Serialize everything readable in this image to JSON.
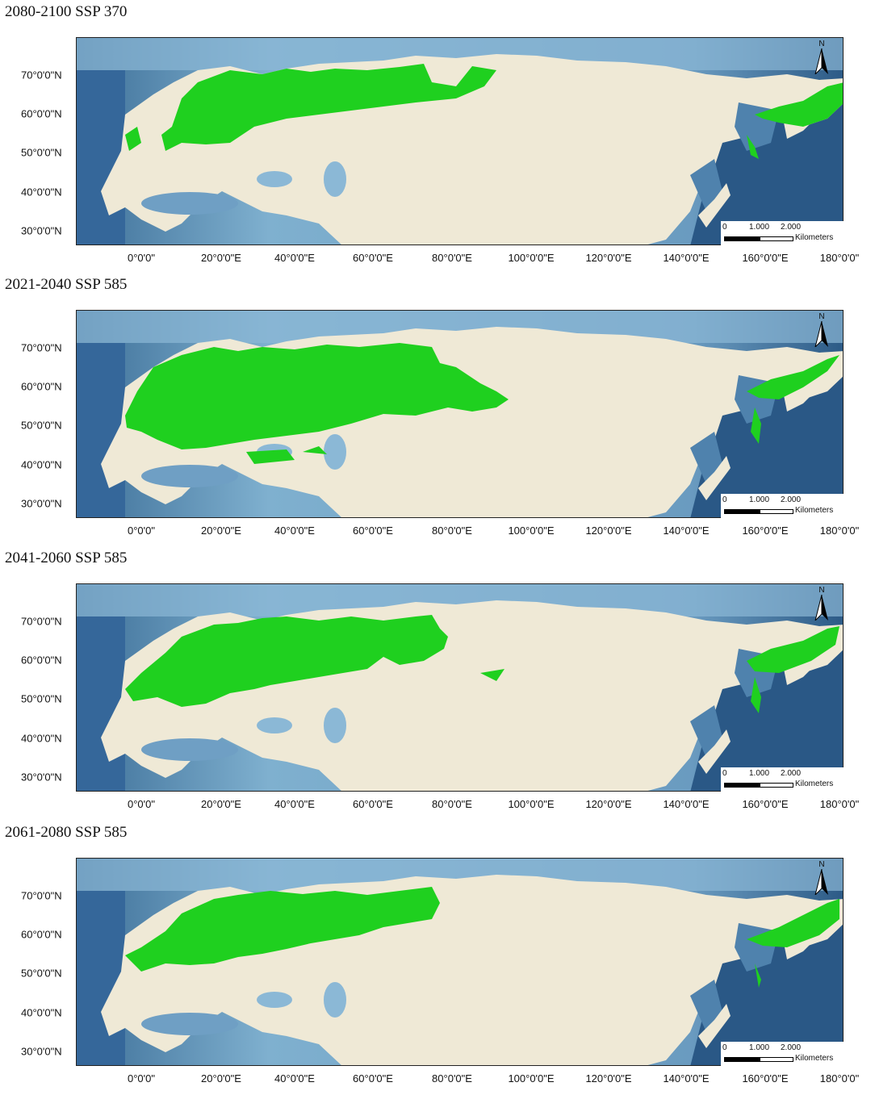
{
  "panels": [
    {
      "title": "2080-2100 SSP 370"
    },
    {
      "title": "2021-2040 SSP 585"
    },
    {
      "title": "2041-2060 SSP 585"
    },
    {
      "title": "2061-2080 SSP 585"
    }
  ],
  "lat_labels": [
    "70°0'0\"N",
    "60°0'0\"N",
    "50°0'0\"N",
    "40°0'0\"N",
    "30°0'0\"N"
  ],
  "lon_labels": [
    "0°0'0\"",
    "20°0'0\"E",
    "40°0'0\"E",
    "60°0'0\"E",
    "80°0'0\"E",
    "100°0'0\"E",
    "120°0'0\"E",
    "140°0'0\"E",
    "160°0'0\"E",
    "180°0'0\""
  ],
  "north_arrow": {
    "letter": "N"
  },
  "scale_bar": {
    "ticks": [
      "0",
      "1.000",
      "2.000"
    ],
    "units": "Kilometers"
  },
  "colors": {
    "suitable_habitat": "#1fd01f",
    "ocean": "#5a8fb4",
    "deep_ocean": "#2f5f8a",
    "land": "#efe9d6"
  }
}
